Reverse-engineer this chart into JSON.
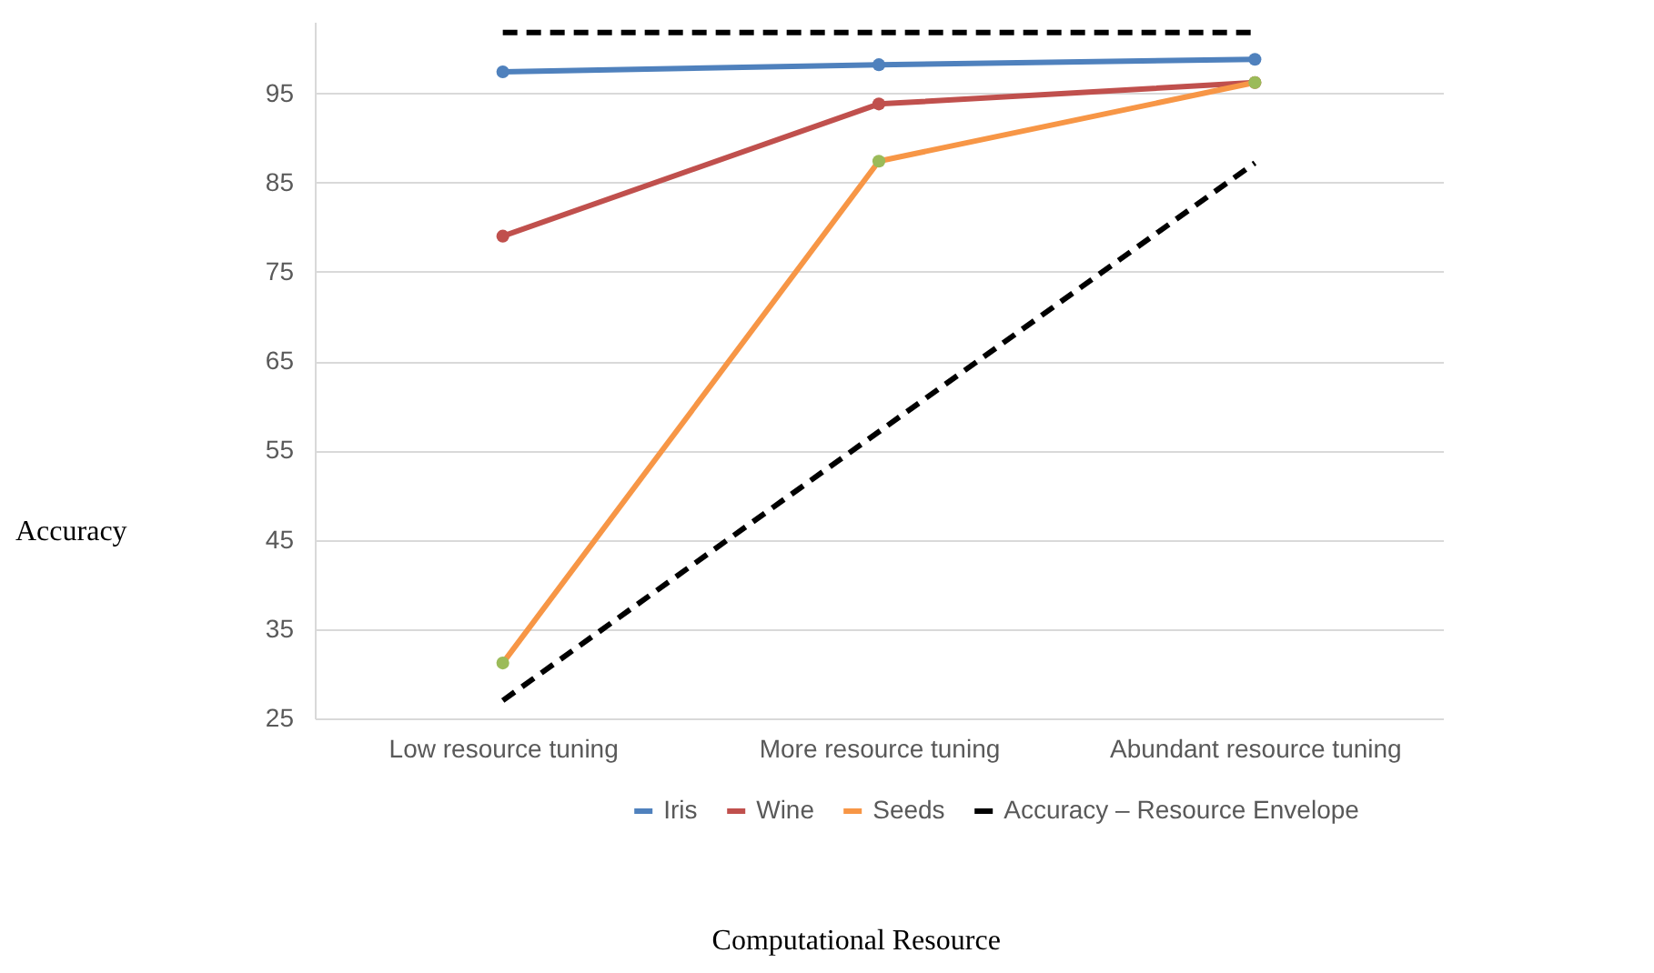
{
  "chart_data": {
    "type": "line",
    "annotations": [
      "Computational Resource"
    ],
    "ylabel": "Accuracy",
    "categories": [
      "Low resource tuning",
      "More resource tuning",
      "Abundant resource tuning"
    ],
    "series": [
      {
        "name": "Iris",
        "color": "#4f81bd",
        "marker": "circle",
        "values": [
          97.4,
          98.2,
          98.8
        ]
      },
      {
        "name": "Wine",
        "color": "#c0504d",
        "marker": "circle",
        "values": [
          79.0,
          93.8,
          96.2
        ]
      },
      {
        "name": "Seeds",
        "color": "#f79646",
        "colors": [
          "#9bbb59",
          "#9bbb59",
          "#9bbb59"
        ],
        "marker": "circle",
        "values": [
          31.2,
          87.4,
          96.2
        ]
      },
      {
        "name": "Accuracy – Resource Envelope",
        "color": "#000000",
        "marker": "none",
        "line_style": "dashed",
        "values": [
          27.0,
          57.1,
          87.2
        ]
      },
      {
        "color": "#000000",
        "marker": "none",
        "line_style": "dashed",
        "values": [
          101.8,
          101.8,
          101.8
        ]
      }
    ],
    "ylim": [
      25,
      103
    ],
    "yticks": [
      25,
      35,
      45,
      55,
      65,
      75,
      85,
      95
    ],
    "grid": "y",
    "legend": "bottom"
  }
}
